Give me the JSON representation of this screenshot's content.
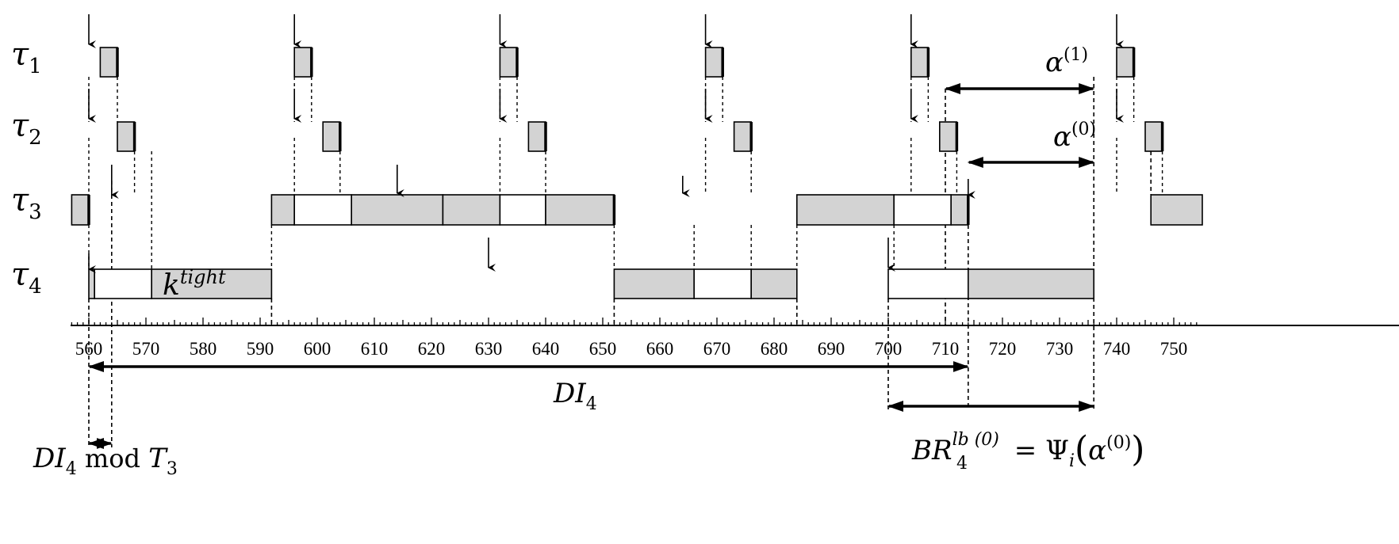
{
  "tasks": [
    {
      "id": "t1",
      "symbol": "τ",
      "sub": "1"
    },
    {
      "id": "t2",
      "symbol": "τ",
      "sub": "2"
    },
    {
      "id": "t3",
      "symbol": "τ",
      "sub": "3"
    },
    {
      "id": "t4",
      "symbol": "τ",
      "sub": "4"
    }
  ],
  "axis": {
    "min": 560,
    "max": 750,
    "major_step": 10,
    "labels": [
      "560",
      "570",
      "580",
      "590",
      "600",
      "610",
      "620",
      "630",
      "640",
      "650",
      "660",
      "670",
      "680",
      "690",
      "700",
      "710",
      "720",
      "730",
      "740",
      "750"
    ]
  },
  "colors": {
    "busy": "#d3d3d3",
    "preempted": "#ffffff",
    "stroke": "#000000"
  },
  "execution": {
    "t1": [
      [
        562,
        565
      ],
      [
        596,
        599
      ],
      [
        632,
        635
      ],
      [
        668,
        671
      ],
      [
        704,
        707
      ],
      [
        740,
        743
      ]
    ],
    "t2": [
      [
        565,
        568
      ],
      [
        601,
        604
      ],
      [
        637,
        640
      ],
      [
        673,
        676
      ],
      [
        709,
        712
      ],
      [
        745,
        748
      ]
    ],
    "t3": [
      {
        "start": 557,
        "end": 560,
        "fill": "busy"
      },
      {
        "start": 592,
        "end": 596,
        "fill": "busy"
      },
      {
        "start": 596,
        "end": 606,
        "fill": "preempted"
      },
      {
        "start": 606,
        "end": 622,
        "fill": "busy"
      },
      {
        "start": 622,
        "end": 632,
        "fill": "busy"
      },
      {
        "start": 632,
        "end": 640,
        "fill": "preempted"
      },
      {
        "start": 640,
        "end": 652,
        "fill": "busy"
      },
      {
        "start": 684,
        "end": 701,
        "fill": "busy"
      },
      {
        "start": 701,
        "end": 711,
        "fill": "preempted"
      },
      {
        "start": 711,
        "end": 714,
        "fill": "busy"
      },
      {
        "start": 746,
        "end": 755,
        "fill": "busy"
      }
    ],
    "t4": [
      {
        "start": 560,
        "end": 561,
        "fill": "busy"
      },
      {
        "start": 561,
        "end": 571,
        "fill": "preempted"
      },
      {
        "start": 571,
        "end": 592,
        "fill": "busy"
      },
      {
        "start": 652,
        "end": 666,
        "fill": "busy"
      },
      {
        "start": 666,
        "end": 676,
        "fill": "preempted"
      },
      {
        "start": 676,
        "end": 684,
        "fill": "busy"
      },
      {
        "start": 700,
        "end": 714,
        "fill": "preempted"
      },
      {
        "start": 714,
        "end": 736,
        "fill": "busy"
      }
    ]
  },
  "releases": {
    "t1": [
      560,
      596,
      632,
      668,
      704,
      740
    ],
    "t2": [
      560,
      596,
      632,
      668,
      704,
      740
    ],
    "t3": [
      564,
      614,
      664,
      714
    ],
    "t4": [
      560,
      630,
      700
    ]
  },
  "labels": {
    "k_tight": {
      "base": "k",
      "sup": "tight"
    },
    "alpha1": {
      "base": "α",
      "sup": "(1)"
    },
    "alpha0": {
      "base": "α",
      "sup": "(0)"
    },
    "di4": {
      "base": "DI",
      "sub": "4"
    },
    "di4_mod": {
      "base": "DI",
      "sub": "4",
      "mid": " mod ",
      "base2": "T",
      "sub2": "3"
    },
    "br": {
      "base": "BR",
      "sub": "4",
      "sup": "lb (0)",
      "eq": " = ",
      "psi": "Ψ",
      "psi_sub": "i",
      "arg": "α",
      "arg_sup": "(0)"
    }
  },
  "intervals": {
    "alpha1": [
      710,
      736
    ],
    "alpha0": [
      714,
      736
    ],
    "di4": [
      560,
      714
    ],
    "di4_mod": [
      560,
      564
    ],
    "br": [
      700,
      736
    ]
  }
}
